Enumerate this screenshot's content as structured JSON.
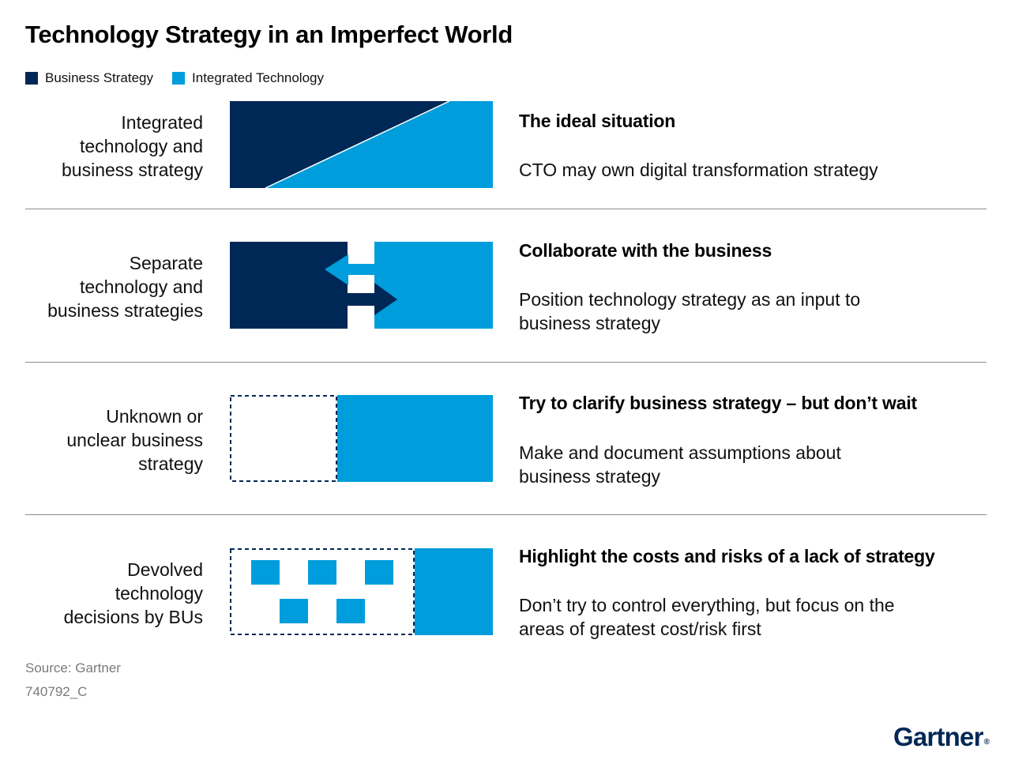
{
  "title": "Technology Strategy in an Imperfect World",
  "colors": {
    "business": "#002856",
    "technology": "#009ddc",
    "divider": "#8c8c8c",
    "muted": "#7a7a7a"
  },
  "legend": [
    {
      "label": "Business Strategy",
      "color": "#002856"
    },
    {
      "label": "Integrated Technology",
      "color": "#009ddc"
    }
  ],
  "rows": [
    {
      "label_lines": [
        "Integrated",
        "technology and",
        "business strategy"
      ],
      "heading": "The ideal situation",
      "desc_lines": [
        "CTO may own digital transformation strategy"
      ]
    },
    {
      "label_lines": [
        "Separate",
        "technology and",
        "business strategies"
      ],
      "heading": "Collaborate with the business",
      "desc_lines": [
        "Position technology strategy as an input to",
        "business strategy"
      ]
    },
    {
      "label_lines": [
        "Unknown or",
        "unclear business",
        "strategy"
      ],
      "heading": "Try to clarify business strategy – but don’t wait",
      "desc_lines": [
        "Make and document assumptions about",
        "business strategy"
      ]
    },
    {
      "label_lines": [
        "Devolved",
        "technology",
        "decisions by BUs"
      ],
      "heading": "Highlight the costs and risks of a lack of strategy",
      "desc_lines": [
        "Don’t try to control everything, but focus on the",
        "areas of greatest cost/risk first"
      ]
    }
  ],
  "source": "Source: Gartner",
  "code": "740792_C",
  "logo": {
    "text": "Gartner",
    "mark": "®"
  }
}
